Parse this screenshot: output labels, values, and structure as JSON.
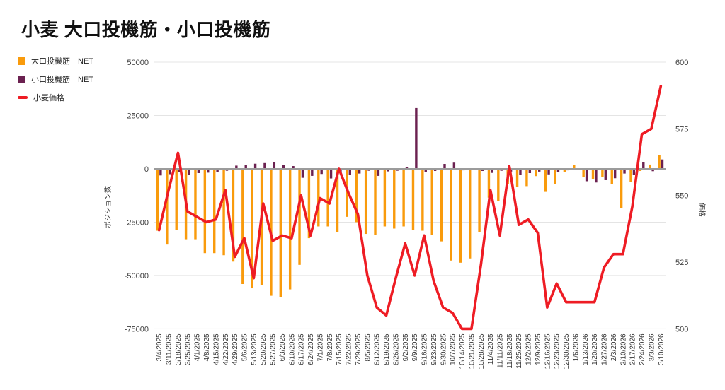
{
  "title": "小麦 大口投機筋・小口投機筋",
  "legend": {
    "items": [
      {
        "label": "大口投機筋　NET",
        "color": "#F99B0C",
        "kind": "bar"
      },
      {
        "label": "小口投機筋　NET",
        "color": "#6B2150",
        "kind": "bar"
      },
      {
        "label": "小麦価格",
        "color": "#EE1C24",
        "kind": "line"
      }
    ]
  },
  "chart_data": {
    "type": "combo",
    "grid": true,
    "legend_position": "top-left",
    "categories": [
      "3/4/2025",
      "3/11/2025",
      "3/18/2025",
      "3/25/2025",
      "4/1/2025",
      "4/8/2025",
      "4/15/2025",
      "4/22/2025",
      "4/29/2025",
      "5/6/2025",
      "5/13/2025",
      "5/20/2025",
      "5/27/2025",
      "6/3/2025",
      "6/10/2025",
      "6/17/2025",
      "6/24/2025",
      "7/1/2025",
      "7/8/2025",
      "7/15/2025",
      "7/22/2025",
      "7/29/2025",
      "8/5/2025",
      "8/12/2025",
      "8/19/2025",
      "8/26/2025",
      "9/2/2025",
      "9/9/2025",
      "9/16/2025",
      "9/23/2025",
      "9/30/2025",
      "10/7/2025",
      "10/14/2025",
      "10/21/2025",
      "10/28/2025",
      "11/4/2025",
      "11/11/2025",
      "11/18/2025",
      "11/25/2025",
      "12/2/2025",
      "12/9/2025",
      "12/16/2025",
      "12/23/2025",
      "12/30/2025",
      "1/6/2026",
      "1/13/2026",
      "1/20/2026",
      "1/27/2026",
      "2/3/2026",
      "2/10/2026",
      "2/17/2026",
      "2/24/2026",
      "3/3/2026",
      "3/10/2026"
    ],
    "series": [
      {
        "name": "大口投機筋 NET",
        "type": "bar",
        "axis": "left",
        "color": "#F99B0C",
        "values": [
          -29000,
          -35500,
          -28500,
          -33000,
          -33000,
          -39500,
          -39500,
          -40500,
          -43500,
          -54000,
          -56000,
          -54500,
          -59500,
          -60000,
          -56500,
          -45000,
          -32500,
          -27000,
          -27000,
          -29500,
          -22500,
          -25000,
          -30500,
          -31000,
          -27000,
          -28000,
          -27000,
          -28500,
          -29000,
          -31000,
          -34000,
          -43000,
          -44000,
          -42000,
          -29500,
          -13500,
          -15000,
          -7000,
          -8600,
          -8100,
          -3400,
          -10800,
          -7000,
          -1500,
          1800,
          -4000,
          -4800,
          -3700,
          -7000,
          -18500,
          -6100,
          -1000,
          2000,
          6400
        ]
      },
      {
        "name": "小口投機筋 NET",
        "type": "bar",
        "axis": "left",
        "color": "#6B2150",
        "values": [
          -3100,
          -2500,
          -1500,
          -2800,
          -2000,
          -1800,
          -1400,
          -900,
          1500,
          1900,
          2400,
          2700,
          3300,
          1900,
          1300,
          -4200,
          -3300,
          -2400,
          -4500,
          -1900,
          -2700,
          -2200,
          -900,
          -3300,
          -1200,
          -900,
          800,
          28500,
          -1600,
          -1000,
          2300,
          2900,
          -700,
          -600,
          -1000,
          -1900,
          -900,
          -1300,
          -2700,
          -2000,
          -1300,
          -2600,
          -1600,
          -700,
          -500,
          -5800,
          -6400,
          -5300,
          -4400,
          -2200,
          -2800,
          3000,
          -1100,
          4400
        ]
      },
      {
        "name": "小麦価格",
        "type": "line",
        "axis": "right",
        "color": "#EE1C24",
        "values": [
          537,
          552,
          566,
          544,
          542,
          540,
          541,
          552,
          527,
          534,
          519,
          547,
          533,
          535,
          534,
          550,
          535,
          549,
          547,
          560,
          551,
          543,
          520,
          508,
          505,
          519,
          532,
          520,
          535,
          518,
          508,
          506,
          500,
          500,
          524,
          552,
          535,
          561,
          539,
          541,
          536,
          508,
          517,
          510,
          510,
          510,
          510,
          523,
          528,
          528,
          546,
          573,
          575,
          591
        ]
      }
    ],
    "left_axis": {
      "label": "ポジション数",
      "min": -75000,
      "max": 50000,
      "ticks": [
        50000,
        25000,
        0,
        -25000,
        -50000,
        -75000
      ]
    },
    "right_axis": {
      "label": "価格",
      "min": 500,
      "max": 600,
      "ticks": [
        600,
        575,
        550,
        525,
        500
      ]
    }
  }
}
